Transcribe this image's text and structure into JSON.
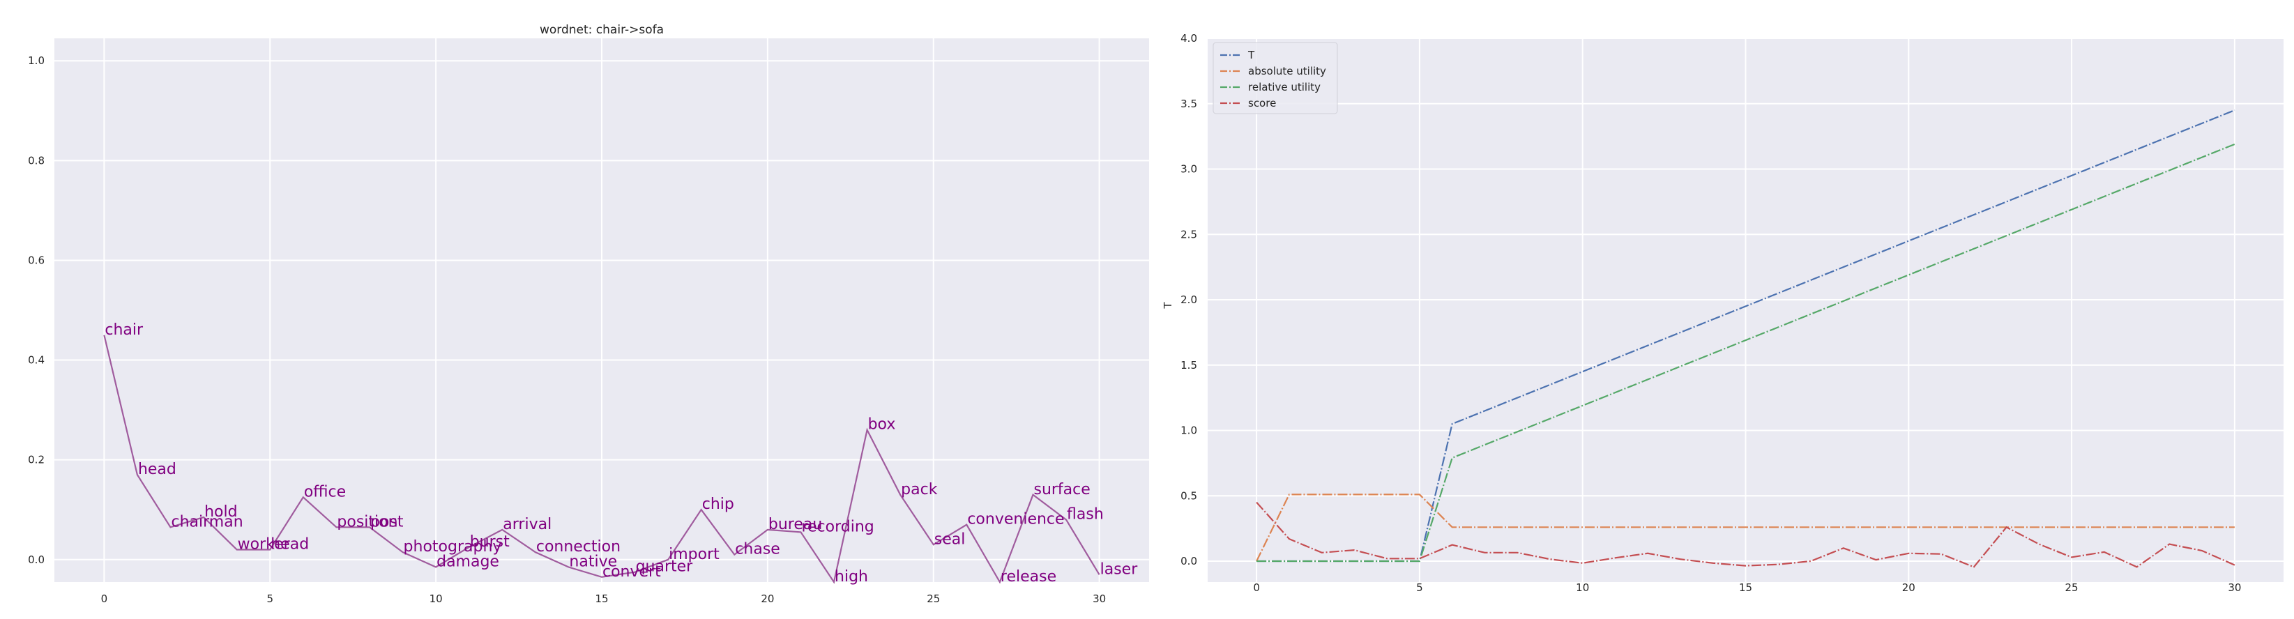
{
  "chart_data": [
    {
      "type": "line",
      "title": "wordnet: chair->sofa",
      "xlabel": "",
      "ylabel": "",
      "xlim": [
        -1.5,
        31.5
      ],
      "ylim": [
        -0.045,
        1.045
      ],
      "xticks": [
        0,
        5,
        10,
        15,
        20,
        25,
        30
      ],
      "yticks": [
        0.0,
        0.2,
        0.4,
        0.6,
        0.8,
        1.0
      ],
      "grid": true,
      "line_color": "#a05c9e",
      "label_color": "#800080",
      "x": [
        0,
        1,
        2,
        3,
        4,
        5,
        6,
        7,
        8,
        9,
        10,
        11,
        12,
        13,
        14,
        15,
        16,
        17,
        18,
        19,
        20,
        21,
        22,
        23,
        24,
        25,
        26,
        27,
        28,
        29,
        30
      ],
      "y": [
        0.45,
        0.17,
        0.065,
        0.085,
        0.02,
        0.02,
        0.125,
        0.065,
        0.065,
        0.015,
        -0.015,
        0.025,
        0.06,
        0.015,
        -0.015,
        -0.035,
        -0.025,
        0.0,
        0.1,
        0.01,
        0.06,
        0.055,
        -0.045,
        0.26,
        0.13,
        0.03,
        0.07,
        -0.045,
        0.13,
        0.08,
        -0.03
      ],
      "labels": [
        "chair",
        "head",
        "chairman",
        "hold",
        "worker",
        "head",
        "office",
        "position",
        "post",
        "photography",
        "damage",
        "burst",
        "arrival",
        "connection",
        "native",
        "convert",
        "quarter",
        "import",
        "chip",
        "chase",
        "bureau",
        "recording",
        "high",
        "box",
        "pack",
        "seal",
        "convenience",
        "release",
        "surface",
        "flash",
        "laser"
      ]
    },
    {
      "type": "line",
      "title": "",
      "xlabel": "",
      "ylabel": "T",
      "xlim": [
        -1.5,
        31.5
      ],
      "ylim": [
        -0.16,
        4.0
      ],
      "xticks": [
        0,
        5,
        10,
        15,
        20,
        25,
        30
      ],
      "yticks": [
        0.0,
        0.5,
        1.0,
        1.5,
        2.0,
        2.5,
        3.0,
        3.5,
        4.0
      ],
      "grid": true,
      "legend_position": "top-left",
      "x": [
        0,
        1,
        2,
        3,
        4,
        5,
        6,
        7,
        8,
        9,
        10,
        11,
        12,
        13,
        14,
        15,
        16,
        17,
        18,
        19,
        20,
        21,
        22,
        23,
        24,
        25,
        26,
        27,
        28,
        29,
        30
      ],
      "series": [
        {
          "name": "T",
          "color": "#4c72b0",
          "values": [
            0.0,
            0.0,
            0.0,
            0.0,
            0.0,
            0.0,
            1.05,
            1.15,
            1.25,
            1.35,
            1.45,
            1.55,
            1.65,
            1.75,
            1.85,
            1.95,
            2.05,
            2.15,
            2.25,
            2.35,
            2.45,
            2.55,
            2.65,
            2.75,
            2.85,
            2.95,
            3.05,
            3.15,
            3.25,
            3.35,
            3.45
          ]
        },
        {
          "name": "absolute utility",
          "color": "#dd8452",
          "values": [
            0.0,
            0.51,
            0.51,
            0.51,
            0.51,
            0.51,
            0.26,
            0.26,
            0.26,
            0.26,
            0.26,
            0.26,
            0.26,
            0.26,
            0.26,
            0.26,
            0.26,
            0.26,
            0.26,
            0.26,
            0.26,
            0.26,
            0.26,
            0.26,
            0.26,
            0.26,
            0.26,
            0.26,
            0.26,
            0.26,
            0.26
          ]
        },
        {
          "name": "relative utility",
          "color": "#55a868",
          "values": [
            0.0,
            0.0,
            0.0,
            0.0,
            0.0,
            0.0,
            0.79,
            0.89,
            0.99,
            1.09,
            1.19,
            1.29,
            1.39,
            1.49,
            1.59,
            1.69,
            1.79,
            1.89,
            1.99,
            2.09,
            2.19,
            2.29,
            2.39,
            2.49,
            2.59,
            2.69,
            2.79,
            2.89,
            2.99,
            3.09,
            3.19
          ]
        },
        {
          "name": "score",
          "color": "#c44e52",
          "values": [
            0.45,
            0.17,
            0.065,
            0.085,
            0.02,
            0.02,
            0.125,
            0.065,
            0.065,
            0.015,
            -0.015,
            0.025,
            0.06,
            0.015,
            -0.015,
            -0.035,
            -0.025,
            0.0,
            0.1,
            0.01,
            0.06,
            0.055,
            -0.045,
            0.26,
            0.13,
            0.03,
            0.07,
            -0.045,
            0.13,
            0.08,
            -0.03
          ]
        }
      ]
    }
  ]
}
